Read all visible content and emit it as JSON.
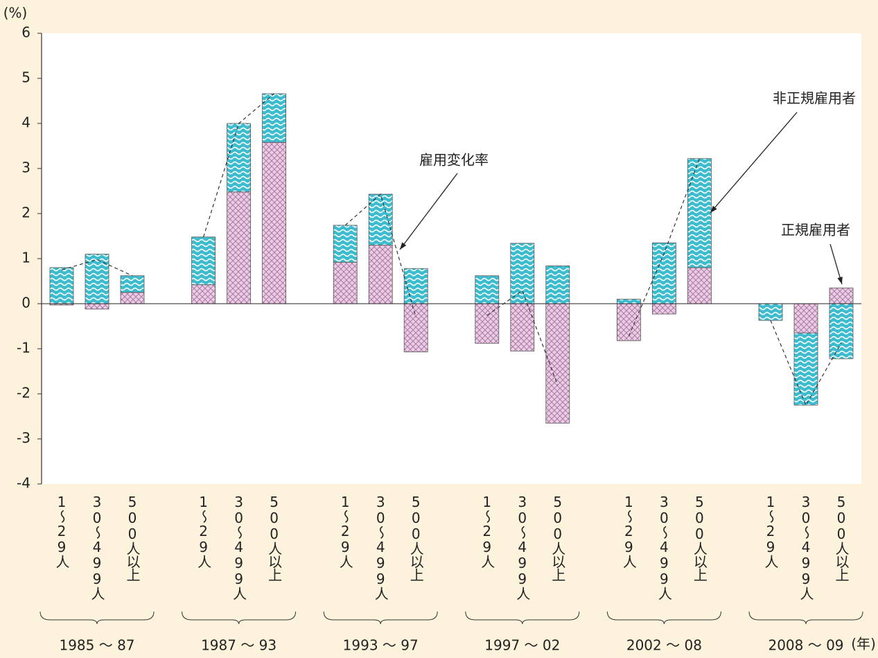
{
  "chart_data": {
    "type": "bar",
    "stacked": true,
    "y_unit": "(%)",
    "x_unit": "(年)",
    "groups": [
      "1985 ～ 87",
      "1987 ～ 93",
      "1993 ～ 97",
      "1997 ～ 02",
      "2002 ～ 08",
      "2008 ～ 09"
    ],
    "categories": [
      "1～29人",
      "30～499人",
      "500人以上",
      "1～29人",
      "30～499人",
      "500人以上",
      "1～29人",
      "30～499人",
      "500人以上",
      "1～29人",
      "30～499人",
      "500人以上",
      "1～29人",
      "30～499人",
      "500人以上",
      "1～29人",
      "30～499人",
      "500人以上"
    ],
    "series": [
      {
        "name": "正規雇用者",
        "type": "bar",
        "color": "#e9cde3",
        "values": [
          -0.03,
          -0.12,
          0.25,
          0.42,
          2.48,
          3.58,
          0.92,
          1.3,
          -1.07,
          -0.88,
          -1.05,
          -2.65,
          -0.82,
          -0.23,
          0.8,
          0,
          -0.65,
          0.35
        ]
      },
      {
        "name": "非正規雇用者",
        "type": "bar",
        "color": "#3dbccf",
        "values": [
          0.8,
          1.1,
          0.37,
          1.06,
          1.52,
          1.08,
          0.82,
          1.13,
          0.78,
          0.62,
          1.34,
          0.84,
          0.1,
          1.35,
          2.42,
          -0.37,
          -1.6,
          -1.22
        ]
      },
      {
        "name": "雇用変化率",
        "type": "line",
        "color": "#333333",
        "values": [
          0.75,
          0.98,
          0.62,
          1.48,
          4.0,
          4.66,
          1.74,
          2.43,
          -0.3,
          -0.26,
          0.29,
          -1.81,
          -0.72,
          1.12,
          3.22,
          -0.37,
          -2.25,
          -0.87
        ]
      }
    ],
    "ylim": [
      -4,
      6
    ],
    "yticks": [
      -4,
      -3,
      -2,
      -1,
      0,
      1,
      2,
      3,
      4,
      5,
      6
    ]
  }
}
